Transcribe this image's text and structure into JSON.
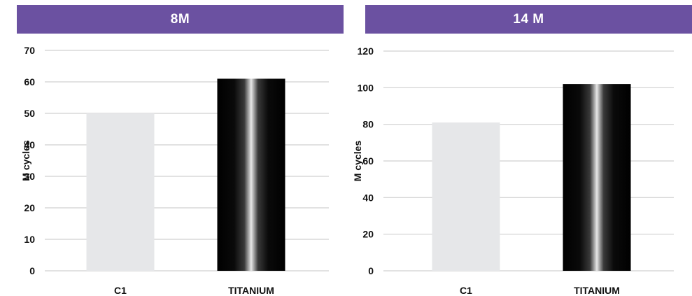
{
  "chart_data": [
    {
      "type": "bar",
      "title": "8M",
      "ylabel": "M cycles",
      "categories": [
        "C1",
        "TITANIUM"
      ],
      "values": [
        50,
        61
      ],
      "ylim": [
        0,
        70
      ],
      "yticks": [
        0,
        10,
        20,
        30,
        40,
        50,
        60,
        70
      ],
      "grid": true,
      "colors": {
        "C1": "#e6e7e9",
        "TITANIUM": "#000000",
        "header": "#6b51a1",
        "gridline": "#d0d0d0"
      }
    },
    {
      "type": "bar",
      "title": "14 M",
      "ylabel": "M cycles",
      "categories": [
        "C1",
        "TITANIUM"
      ],
      "values": [
        81,
        102
      ],
      "ylim": [
        0,
        120
      ],
      "yticks": [
        0,
        20,
        40,
        60,
        80,
        100,
        120
      ],
      "grid": true,
      "colors": {
        "C1": "#e6e7e9",
        "TITANIUM": "#000000",
        "header": "#6b51a1",
        "gridline": "#d0d0d0"
      }
    }
  ]
}
